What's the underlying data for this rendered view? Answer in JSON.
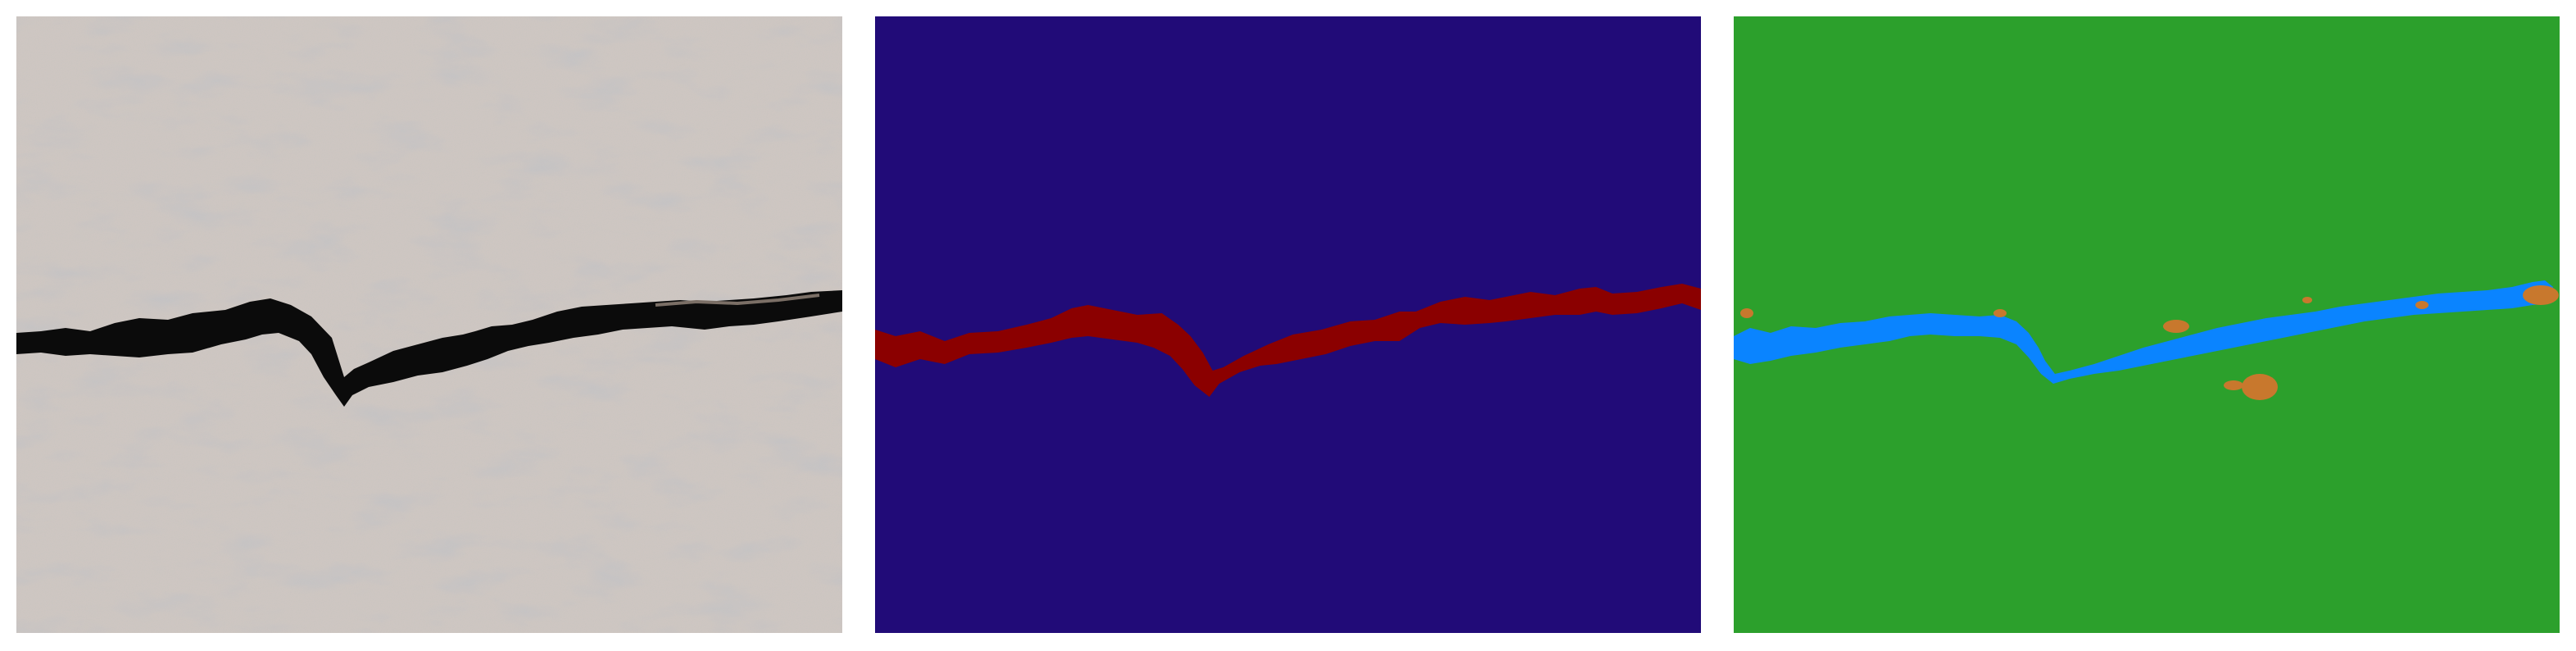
{
  "panels": [
    {
      "id": "photo",
      "content": "concrete-surface-photo",
      "colors": {
        "surface": "#cfc7c2",
        "surface_dark": "#9a948f",
        "speckle_blue": "#8a97a6",
        "crack": "#0b0b0b"
      }
    },
    {
      "id": "ground-truth",
      "content": "segmentation-mask",
      "colors": {
        "background": "#210b78",
        "crack": "#8b0000"
      }
    },
    {
      "id": "prediction",
      "content": "segmentation-mask",
      "colors": {
        "background": "#2ca02c",
        "crack": "#0a84ff",
        "noise": "#c8782d"
      }
    }
  ]
}
